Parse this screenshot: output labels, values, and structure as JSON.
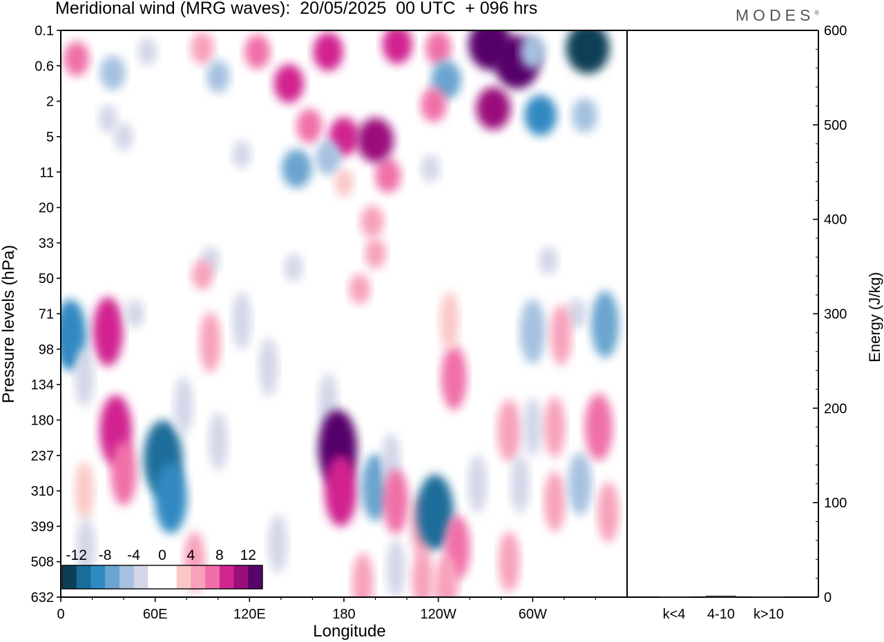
{
  "header": {
    "title": "Meridional wind (MRG waves):  20/05/2025  00 UTC  + 096 hrs",
    "brand": "MODES"
  },
  "chart_data": [
    {
      "type": "heatmap",
      "title": "Meridional wind (MRG waves):  20/05/2025  00 UTC  + 096 hrs",
      "xlabel": "Longitude",
      "ylabel": "Pressure levels (hPa)",
      "x_ticks": [
        "0",
        "60E",
        "120E",
        "180",
        "120W",
        "60W"
      ],
      "x_tick_positions": [
        0,
        60,
        120,
        180,
        240,
        300
      ],
      "xlim": [
        0,
        360
      ],
      "y_ticks": [
        "0.1",
        "0.6",
        "2",
        "5",
        "11",
        "20",
        "33",
        "50",
        "71",
        "98",
        "134",
        "180",
        "237",
        "310",
        "399",
        "508",
        "632"
      ],
      "y_scale": "model levels (top 0.1 hPa, bottom 632 hPa)",
      "colorbar": {
        "labels": [
          "-12",
          "-8",
          "-4",
          "0",
          "4",
          "8",
          "12"
        ],
        "levels": [
          -14,
          -12,
          -10,
          -8,
          -6,
          -4,
          -2,
          0,
          2,
          4,
          6,
          8,
          10,
          12,
          14
        ],
        "colors": [
          "#0c3f57",
          "#1a6d99",
          "#3189c2",
          "#6aa4cf",
          "#a5c1e0",
          "#d2d6e8",
          "#ffffff",
          "#ffffff",
          "#f9c8c6",
          "#f7a1ba",
          "#f06fa8",
          "#d1248f",
          "#9b0d7b",
          "#56056a"
        ]
      },
      "cells": [
        {
          "lon": 10,
          "lev": 0.8,
          "v": 6
        },
        {
          "lon": 30,
          "lev": 2.5,
          "v": -3
        },
        {
          "lon": 33,
          "lev": 1.2,
          "v": -6
        },
        {
          "lon": 40,
          "lev": 3,
          "v": -3
        },
        {
          "lon": 55,
          "lev": 0.6,
          "v": -3
        },
        {
          "lon": 90,
          "lev": 0.5,
          "v": 5
        },
        {
          "lon": 100,
          "lev": 1.3,
          "v": -5
        },
        {
          "lon": 115,
          "lev": 3.5,
          "v": -3
        },
        {
          "lon": 125,
          "lev": 0.6,
          "v": 6
        },
        {
          "lon": 145,
          "lev": 1.5,
          "v": 8
        },
        {
          "lon": 170,
          "lev": 0.6,
          "v": 8
        },
        {
          "lon": 158,
          "lev": 2.7,
          "v": 6
        },
        {
          "lon": 208,
          "lev": 4.1,
          "v": 6
        },
        {
          "lon": 180,
          "lev": 3.0,
          "v": 8
        },
        {
          "lon": 150,
          "lev": 3.9,
          "v": -8
        },
        {
          "lon": 170,
          "lev": 3.6,
          "v": -6
        },
        {
          "lon": 200,
          "lev": 3.1,
          "v": 11
        },
        {
          "lon": 214,
          "lev": 0.4,
          "v": 8
        },
        {
          "lon": 240,
          "lev": 0.5,
          "v": 6
        },
        {
          "lon": 245,
          "lev": 1.4,
          "v": -8
        },
        {
          "lon": 273,
          "lev": 0.4,
          "v": 14
        },
        {
          "lon": 290,
          "lev": 0.9,
          "v": 15
        },
        {
          "lon": 335,
          "lev": 0.5,
          "v": -14
        },
        {
          "lon": 300,
          "lev": 0.6,
          "v": -6
        },
        {
          "lon": 275,
          "lev": 2.2,
          "v": 10
        },
        {
          "lon": 305,
          "lev": 2.4,
          "v": -9
        },
        {
          "lon": 333,
          "lev": 2.4,
          "v": -6
        },
        {
          "lon": 237,
          "lev": 2.1,
          "v": 6
        },
        {
          "lon": 95,
          "lev": 6.5,
          "v": -3
        },
        {
          "lon": 235,
          "lev": 3.9,
          "v": -3
        },
        {
          "lon": 198,
          "lev": 5.4,
          "v": 5
        },
        {
          "lon": 200,
          "lev": 6.3,
          "v": 4
        },
        {
          "lon": 148,
          "lev": 6.7,
          "v": -3
        },
        {
          "lon": 310,
          "lev": 6.5,
          "v": -3
        },
        {
          "lon": 180,
          "lev": 4.3,
          "v": 3
        },
        {
          "lon": 90,
          "lev": 6.9,
          "v": 4
        },
        {
          "lon": 115,
          "lev": 8.2,
          "v": -3
        },
        {
          "lon": 190,
          "lev": 7.3,
          "v": 4
        },
        {
          "lon": 30,
          "lev": 8.5,
          "v": 8
        },
        {
          "lon": 47,
          "lev": 8.0,
          "v": -3
        },
        {
          "lon": 6,
          "lev": 8.6,
          "v": -9
        },
        {
          "lon": 15,
          "lev": 9.8,
          "v": -3
        },
        {
          "lon": 95,
          "lev": 8.8,
          "v": 4
        },
        {
          "lon": 132,
          "lev": 9.5,
          "v": -3
        },
        {
          "lon": 250,
          "lev": 9.8,
          "v": 6
        },
        {
          "lon": 247,
          "lev": 8.2,
          "v": 3
        },
        {
          "lon": 300,
          "lev": 8.5,
          "v": -6
        },
        {
          "lon": 346,
          "lev": 8.3,
          "v": -7
        },
        {
          "lon": 328,
          "lev": 8.0,
          "v": -4
        },
        {
          "lon": 318,
          "lev": 8.6,
          "v": 4
        },
        {
          "lon": 35,
          "lev": 11.3,
          "v": 9
        },
        {
          "lon": 40,
          "lev": 12.5,
          "v": 6
        },
        {
          "lon": 65,
          "lev": 12.1,
          "v": -12
        },
        {
          "lon": 70,
          "lev": 13.2,
          "v": -9
        },
        {
          "lon": 78,
          "lev": 10.6,
          "v": -3
        },
        {
          "lon": 100,
          "lev": 11.6,
          "v": -3
        },
        {
          "lon": 170,
          "lev": 10.5,
          "v": -3
        },
        {
          "lon": 176,
          "lev": 11.8,
          "v": 12
        },
        {
          "lon": 178,
          "lev": 13.0,
          "v": 9
        },
        {
          "lon": 200,
          "lev": 12.9,
          "v": -7
        },
        {
          "lon": 210,
          "lev": 12.2,
          "v": -3
        },
        {
          "lon": 213,
          "lev": 13.3,
          "v": 6
        },
        {
          "lon": 230,
          "lev": 14.0,
          "v": 5
        },
        {
          "lon": 238,
          "lev": 13.6,
          "v": -11
        },
        {
          "lon": 252,
          "lev": 14.6,
          "v": 6
        },
        {
          "lon": 265,
          "lev": 12.8,
          "v": -3
        },
        {
          "lon": 285,
          "lev": 11.3,
          "v": 5
        },
        {
          "lon": 292,
          "lev": 12.8,
          "v": -3
        },
        {
          "lon": 300,
          "lev": 11.2,
          "v": -3
        },
        {
          "lon": 314,
          "lev": 11.2,
          "v": 4
        },
        {
          "lon": 314,
          "lev": 13.3,
          "v": 4
        },
        {
          "lon": 330,
          "lev": 12.8,
          "v": -5
        },
        {
          "lon": 342,
          "lev": 11.2,
          "v": 7
        },
        {
          "lon": 348,
          "lev": 13.6,
          "v": 4
        },
        {
          "lon": 15,
          "lev": 13.0,
          "v": 3
        },
        {
          "lon": 16,
          "lev": 14.6,
          "v": -3
        },
        {
          "lon": 85,
          "lev": 15.0,
          "v": 4
        },
        {
          "lon": 138,
          "lev": 14.5,
          "v": -3
        },
        {
          "lon": 213,
          "lev": 15.2,
          "v": -3
        },
        {
          "lon": 230,
          "lev": 15.5,
          "v": 4
        },
        {
          "lon": 285,
          "lev": 15.0,
          "v": 4
        },
        {
          "lon": 245,
          "lev": 15.7,
          "v": 5
        },
        {
          "lon": 192,
          "lev": 15.6,
          "v": 4
        }
      ]
    },
    {
      "type": "bar",
      "ylabel": "Energy (J/kg)",
      "ylim": [
        0,
        600
      ],
      "y_ticks": [
        "0",
        "100",
        "200",
        "300",
        "400",
        "500",
        "600"
      ],
      "categories": [
        "k<4",
        "4-10",
        "k>10"
      ],
      "values": [
        0.5,
        1.5,
        0
      ]
    }
  ],
  "colors": {
    "axis": "#000000",
    "brand": "#555555",
    "negative_strong": "#0c3f57",
    "positive_strong": "#56056a"
  }
}
